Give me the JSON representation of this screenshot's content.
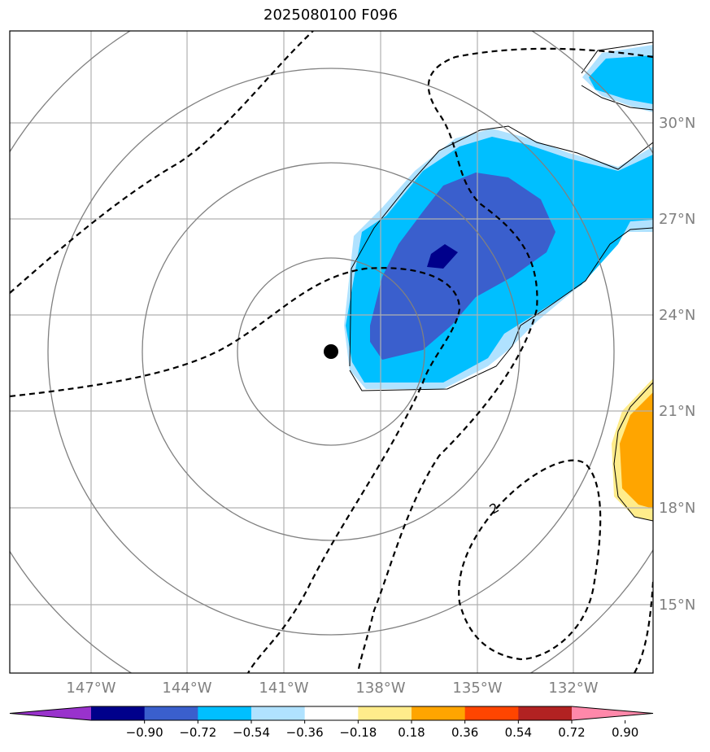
{
  "title": "2025080100 F096",
  "lat_labels": [
    "30°N",
    "27°N",
    "24°N",
    "21°N",
    "18°N",
    "15°N"
  ],
  "lon_labels": [
    "147°W",
    "144°W",
    "141°W",
    "138°W",
    "135°W",
    "132°W"
  ],
  "contour_label": "2",
  "colorbar": {
    "ticks": [
      "−0.90",
      "−0.72",
      "−0.54",
      "−0.36",
      "−0.18",
      "0.18",
      "0.36",
      "0.54",
      "0.72",
      "0.90"
    ],
    "colors": [
      "#9932cc",
      "#00008b",
      "#3a5fcd",
      "#00bfff",
      "#b0e2ff",
      "#ffffff",
      "#ffec8b",
      "#ffa500",
      "#ff4500",
      "#b22222",
      "#ff88aa"
    ]
  },
  "fill_colors": {
    "light_blue": "#b0e2ff",
    "deep_sky": "#00bfff",
    "royal_blue": "#3a5fcd",
    "navy": "#00008b",
    "light_yellow": "#ffec8b",
    "orange": "#ffa500"
  }
}
